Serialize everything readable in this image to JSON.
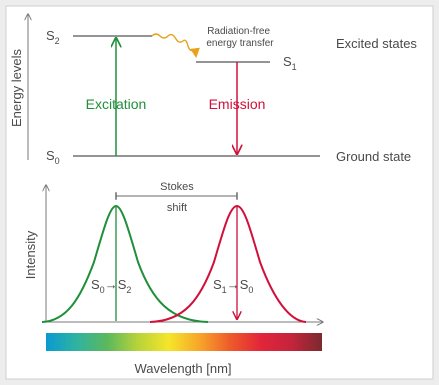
{
  "colors": {
    "background": "#ededed",
    "panel": "#ffffff",
    "border": "#cfcfcf",
    "axis": "#7a7a7a",
    "text": "#4a4a4a",
    "excitation": "#1f8f3a",
    "emission": "#d0103a",
    "energy_transfer": "#e8a21c"
  },
  "energy_diagram": {
    "y_axis_label": "Energy levels",
    "s2": {
      "base": "S",
      "sub": "2"
    },
    "s1": {
      "base": "S",
      "sub": "1"
    },
    "s0": {
      "base": "S",
      "sub": "0"
    },
    "excited_states_label": "Excited states",
    "ground_state_label": "Ground state",
    "excitation_label": "Excitation",
    "emission_label": "Emission",
    "radiation_free_line1": "Radiation-free",
    "radiation_free_line2": "energy transfer"
  },
  "spectrum_diagram": {
    "y_axis_label": "Intensity",
    "x_axis_label": "Wavelength [nm]",
    "stokes_line1": "Stokes",
    "stokes_line2": "shift",
    "left_peak_label": {
      "a": "S",
      "a_sub": "0",
      "arrow": "→",
      "b": "S",
      "b_sub": "2"
    },
    "right_peak_label": {
      "a": "S",
      "a_sub": "1",
      "arrow": "→",
      "b": "S",
      "b_sub": "0"
    },
    "spectrum_gradient": [
      "#0a9ad1",
      "#2fb3a0",
      "#5cb85c",
      "#b8d33a",
      "#f5e52a",
      "#f7a629",
      "#ee5b2a",
      "#e3253a",
      "#c4243c",
      "#7a2a2e"
    ]
  }
}
